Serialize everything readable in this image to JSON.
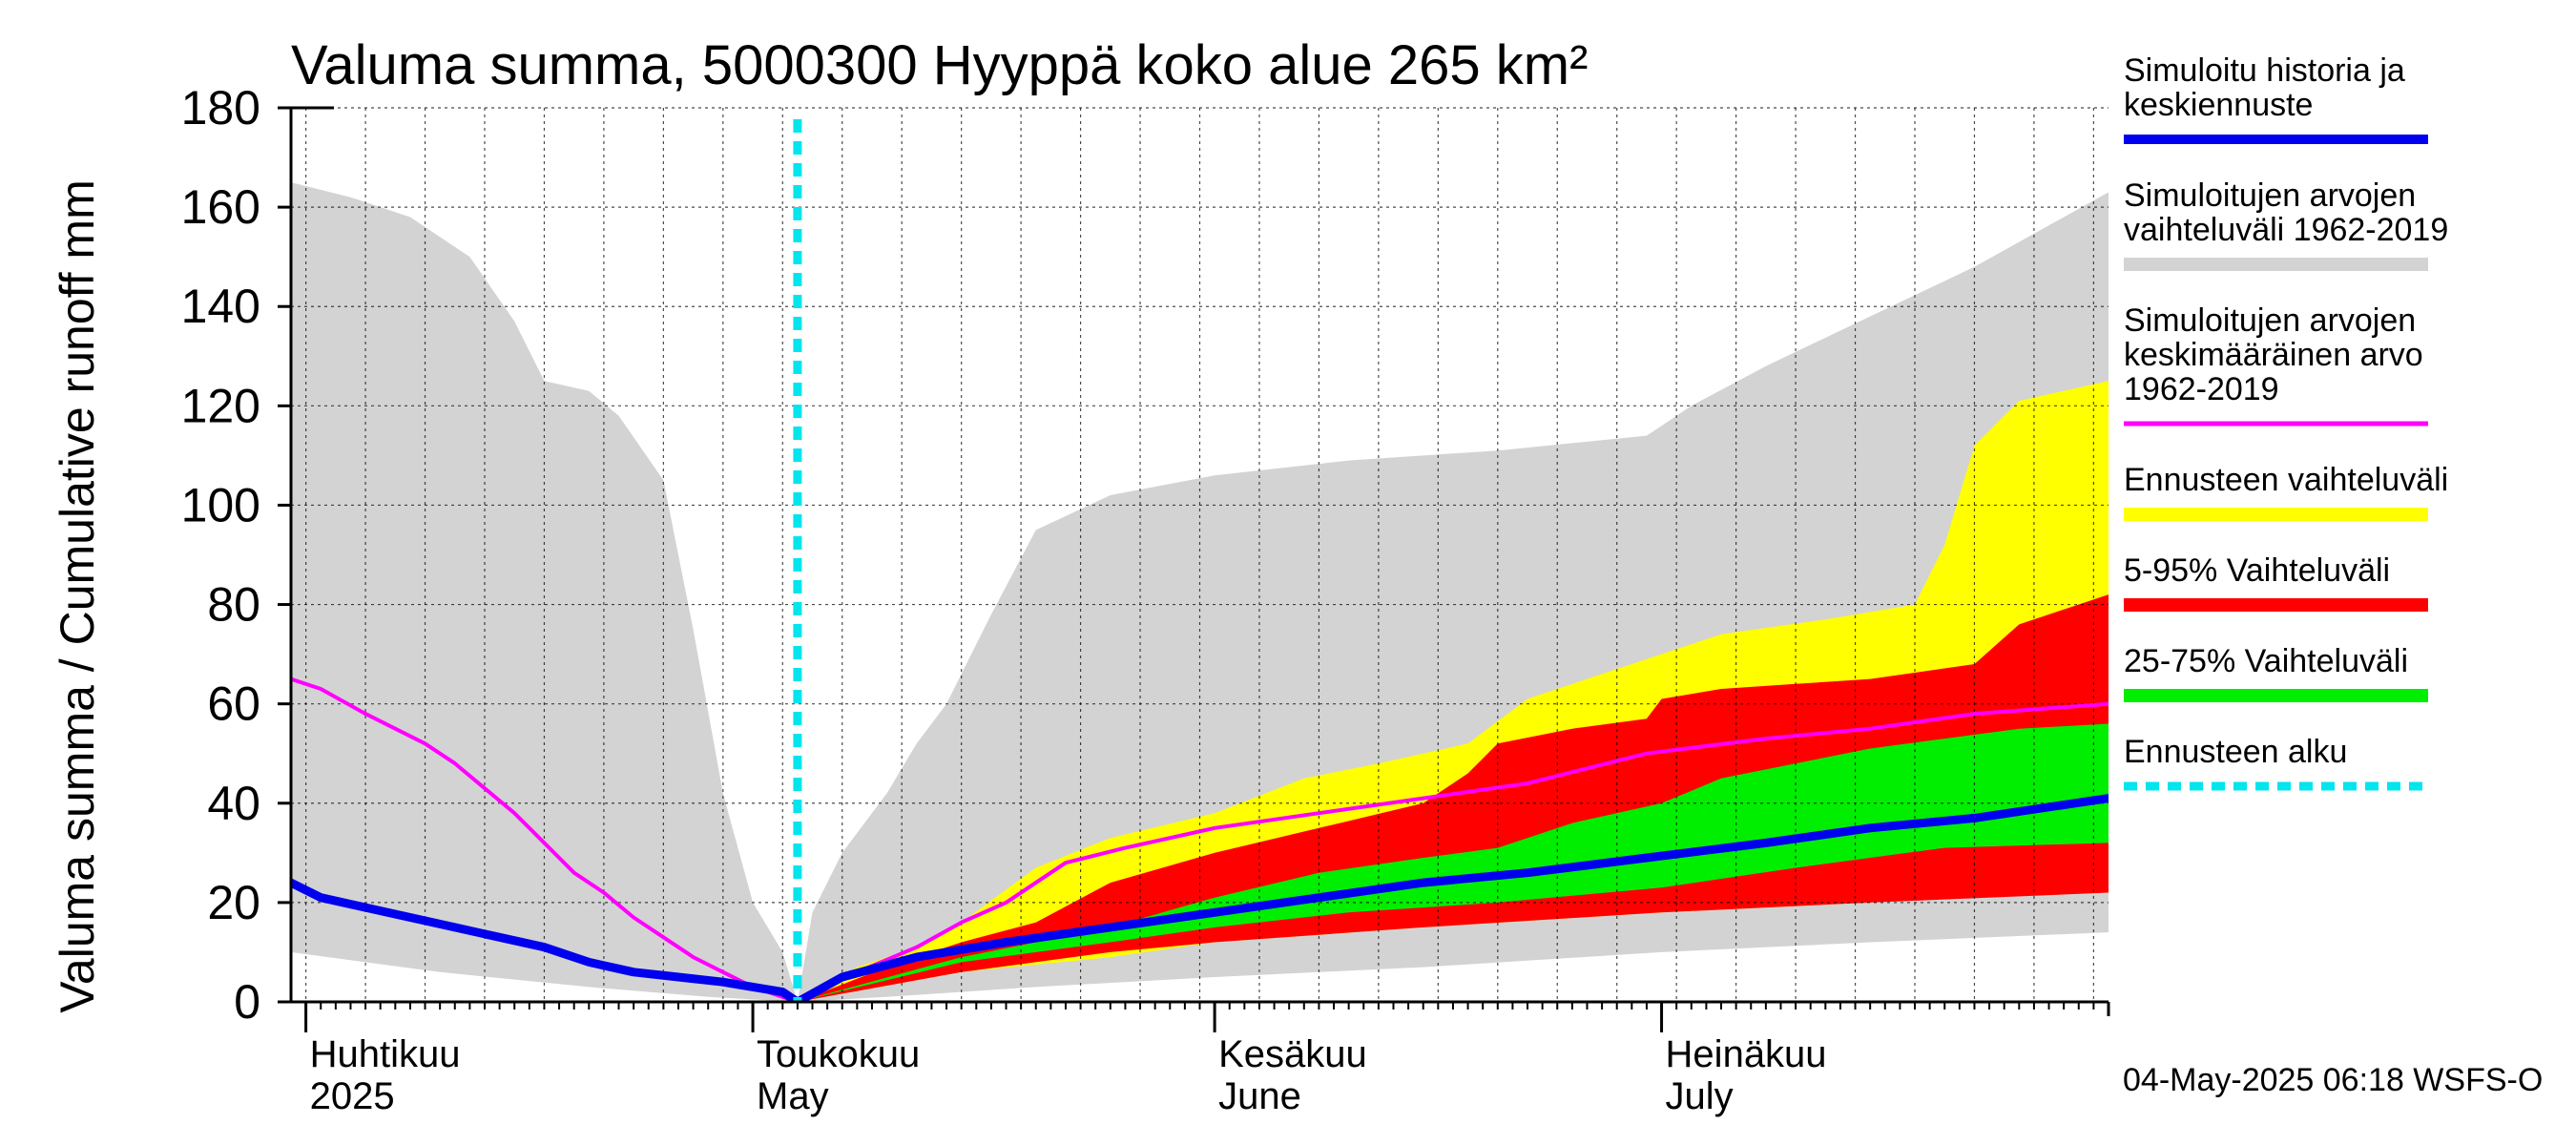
{
  "chart_data": {
    "type": "area",
    "title": "Valuma summa, 5000300 Hyyppä koko alue 265 km²",
    "ylabel": "Valuma summa / Cumulative runoff    mm",
    "ylim": [
      0,
      180
    ],
    "yticks": [
      "0",
      "20",
      "40",
      "60",
      "80",
      "100",
      "120",
      "140",
      "160",
      "180"
    ],
    "xlim": [
      "2025-03-31",
      "2025-07-31"
    ],
    "grid": true,
    "forecast_start": "2025-05-04",
    "months": [
      {
        "date": "2025-04-01",
        "label_fi": "Huhtikuu",
        "label_en": "2025"
      },
      {
        "date": "2025-05-01",
        "label_fi": "Toukokuu",
        "label_en": "May"
      },
      {
        "date": "2025-06-01",
        "label_fi": "Kesäkuu",
        "label_en": "June"
      },
      {
        "date": "2025-07-01",
        "label_fi": "Heinäkuu",
        "label_en": "July"
      }
    ],
    "legend": {
      "placement": "right",
      "items": [
        {
          "key": "history",
          "lines": [
            "Simuloitu historia ja",
            "keskiennuste"
          ],
          "color": "#0000ee",
          "style": "line"
        },
        {
          "key": "range_all",
          "lines": [
            "Simuloitujen arvojen",
            "vaihteluväli 1962-2019"
          ],
          "color": "#d3d3d3",
          "style": "band"
        },
        {
          "key": "mean",
          "lines": [
            "Simuloitujen arvojen",
            "keskimääräinen arvo",
            "   1962-2019"
          ],
          "color": "#ff00ff",
          "style": "thin"
        },
        {
          "key": "fc_range",
          "lines": [
            "Ennusteen vaihteluväli"
          ],
          "color": "#ffff00",
          "style": "band"
        },
        {
          "key": "p5_95",
          "lines": [
            "5-95% Vaihteluväli"
          ],
          "color": "#ff0000",
          "style": "band"
        },
        {
          "key": "p25_75",
          "lines": [
            "25-75% Vaihteluväli"
          ],
          "color": "#00ee00",
          "style": "band"
        },
        {
          "key": "fc_start",
          "lines": [
            "Ennusteen alku"
          ],
          "color": "#00e5ee",
          "style": "dashed"
        }
      ]
    },
    "series": [
      {
        "key": "range_all_upper",
        "x": [
          "2025-03-31",
          "2025-04-04",
          "2025-04-08",
          "2025-04-12",
          "2025-04-15",
          "2025-04-17",
          "2025-04-20",
          "2025-04-22",
          "2025-04-25",
          "2025-04-27",
          "2025-04-29",
          "2025-05-01",
          "2025-05-03",
          "2025-05-04"
        ],
        "values": [
          165,
          162,
          158,
          150,
          137,
          125,
          123,
          118,
          105,
          75,
          42,
          20,
          10,
          0
        ]
      },
      {
        "key": "range_all_upper_fc",
        "x": [
          "2025-05-04",
          "2025-05-05",
          "2025-05-07",
          "2025-05-10",
          "2025-05-12",
          "2025-05-14",
          "2025-05-17",
          "2025-05-20",
          "2025-05-25",
          "2025-06-01",
          "2025-06-10",
          "2025-06-20",
          "2025-06-30",
          "2025-07-01",
          "2025-07-03",
          "2025-07-08",
          "2025-07-15",
          "2025-07-22",
          "2025-07-31"
        ],
        "values": [
          0,
          18,
          30,
          42,
          52,
          60,
          78,
          95,
          102,
          106,
          109,
          111,
          114,
          116,
          120,
          128,
          138,
          148,
          163
        ]
      },
      {
        "key": "range_all_lower",
        "x": [
          "2025-03-31",
          "2025-04-10",
          "2025-04-20",
          "2025-04-28",
          "2025-05-04",
          "2025-05-10",
          "2025-05-20",
          "2025-06-01",
          "2025-06-15",
          "2025-07-01",
          "2025-07-15",
          "2025-07-31"
        ],
        "values": [
          10,
          6,
          3,
          1,
          0,
          1,
          3,
          5,
          7,
          10,
          12,
          14
        ]
      },
      {
        "key": "fc_range_upper",
        "x": [
          "2025-05-04",
          "2025-05-08",
          "2025-05-12",
          "2025-05-15",
          "2025-05-20",
          "2025-05-25",
          "2025-06-01",
          "2025-06-07",
          "2025-06-12",
          "2025-06-18",
          "2025-06-22",
          "2025-06-26",
          "2025-06-30",
          "2025-07-05",
          "2025-07-12",
          "2025-07-18",
          "2025-07-20",
          "2025-07-22",
          "2025-07-25",
          "2025-07-31"
        ],
        "values": [
          0,
          7,
          11,
          16,
          27,
          33,
          38,
          45,
          48,
          52,
          61,
          65,
          69,
          74,
          77,
          80,
          92,
          112,
          121,
          125
        ]
      },
      {
        "key": "p5_95_upper",
        "x": [
          "2025-05-04",
          "2025-05-10",
          "2025-05-15",
          "2025-05-20",
          "2025-05-25",
          "2025-06-01",
          "2025-06-08",
          "2025-06-15",
          "2025-06-18",
          "2025-06-20",
          "2025-06-25",
          "2025-06-30",
          "2025-07-01",
          "2025-07-05",
          "2025-07-10",
          "2025-07-15",
          "2025-07-22",
          "2025-07-25",
          "2025-07-31"
        ],
        "values": [
          0,
          7,
          12,
          16,
          24,
          30,
          35,
          40,
          46,
          52,
          55,
          57,
          61,
          63,
          64,
          65,
          68,
          76,
          82
        ]
      },
      {
        "key": "p25_75_upper",
        "x": [
          "2025-05-04",
          "2025-05-15",
          "2025-05-25",
          "2025-06-01",
          "2025-06-08",
          "2025-06-15",
          "2025-06-20",
          "2025-06-25",
          "2025-07-01",
          "2025-07-05",
          "2025-07-10",
          "2025-07-15",
          "2025-07-20",
          "2025-07-25",
          "2025-07-31"
        ],
        "values": [
          0,
          9,
          15,
          21,
          26,
          29,
          31,
          36,
          40,
          45,
          48,
          51,
          53,
          55,
          56
        ]
      },
      {
        "key": "p25_75_lower",
        "x": [
          "2025-05-04",
          "2025-05-15",
          "2025-05-25",
          "2025-06-01",
          "2025-06-10",
          "2025-06-20",
          "2025-07-01",
          "2025-07-10",
          "2025-07-20",
          "2025-07-31"
        ],
        "values": [
          0,
          8,
          12,
          15,
          18,
          20,
          23,
          27,
          31,
          32
        ]
      },
      {
        "key": "p5_95_lower",
        "x": [
          "2025-05-04",
          "2025-05-15",
          "2025-05-25",
          "2025-06-01",
          "2025-06-15",
          "2025-07-01",
          "2025-07-15",
          "2025-07-31"
        ],
        "values": [
          0,
          6,
          10,
          12,
          15,
          18,
          20,
          22
        ]
      },
      {
        "key": "fc_range_lower",
        "x": [
          "2025-05-04",
          "2025-05-15",
          "2025-05-25",
          "2025-06-01",
          "2025-06-15",
          "2025-07-01",
          "2025-07-15",
          "2025-07-31"
        ],
        "values": [
          0,
          6,
          9,
          12,
          15,
          18,
          20,
          23
        ]
      },
      {
        "key": "mean",
        "x": [
          "2025-03-31",
          "2025-04-02",
          "2025-04-05",
          "2025-04-07",
          "2025-04-09",
          "2025-04-11",
          "2025-04-13",
          "2025-04-15",
          "2025-04-17",
          "2025-04-19",
          "2025-04-21",
          "2025-04-23",
          "2025-04-25",
          "2025-04-27",
          "2025-04-29",
          "2025-05-01",
          "2025-05-04",
          "2025-05-08",
          "2025-05-12",
          "2025-05-15",
          "2025-05-18",
          "2025-05-22",
          "2025-05-26",
          "2025-06-01",
          "2025-06-08",
          "2025-06-15",
          "2025-06-22",
          "2025-06-30",
          "2025-07-08",
          "2025-07-15",
          "2025-07-22",
          "2025-07-31"
        ],
        "values": [
          65,
          63,
          58,
          55,
          52,
          48,
          43,
          38,
          32,
          26,
          22,
          17,
          13,
          9,
          6,
          3,
          0,
          6,
          11,
          16,
          20,
          28,
          31,
          35,
          38,
          41,
          44,
          50,
          53,
          55,
          58,
          60
        ]
      },
      {
        "key": "history",
        "x": [
          "2025-03-31",
          "2025-04-02",
          "2025-04-05",
          "2025-04-08",
          "2025-04-11",
          "2025-04-14",
          "2025-04-17",
          "2025-04-20",
          "2025-04-23",
          "2025-04-26",
          "2025-04-29",
          "2025-05-01",
          "2025-05-03",
          "2025-05-04",
          "2025-05-07",
          "2025-05-12",
          "2025-05-18",
          "2025-05-25",
          "2025-06-01",
          "2025-06-08",
          "2025-06-15",
          "2025-06-22",
          "2025-06-30",
          "2025-07-08",
          "2025-07-15",
          "2025-07-22",
          "2025-07-31"
        ],
        "values": [
          24,
          21,
          19,
          17,
          15,
          13,
          11,
          8,
          6,
          5,
          4,
          3,
          2,
          0,
          5,
          9,
          12,
          15,
          18,
          21,
          24,
          26,
          29,
          32,
          35,
          37,
          41
        ]
      }
    ]
  },
  "footer": "04-May-2025 06:18 WSFS-O"
}
